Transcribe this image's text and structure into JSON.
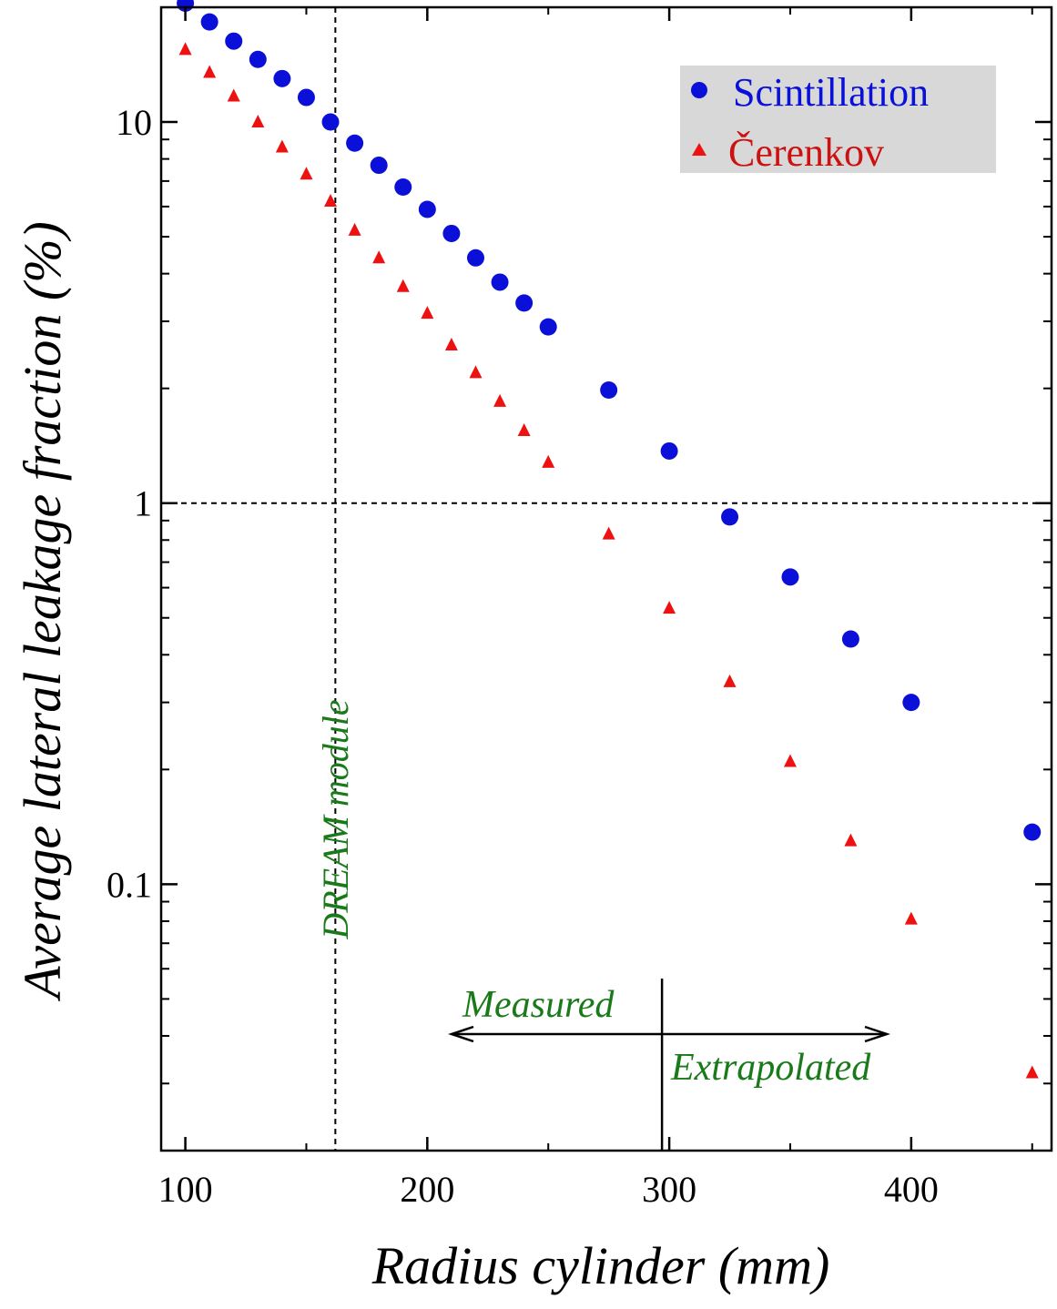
{
  "chart_data": {
    "type": "scatter",
    "title": "",
    "xlabel": "Radius cylinder (mm)",
    "ylabel": "Average lateral leakage fraction (%)",
    "xlim": [
      90,
      458
    ],
    "ylim": [
      0.02,
      20
    ],
    "yscale": "log",
    "xticks": [
      {
        "value": 100,
        "label": "100"
      },
      {
        "value": 200,
        "label": "200"
      },
      {
        "value": 300,
        "label": "300"
      },
      {
        "value": 400,
        "label": "400"
      }
    ],
    "yticks": [
      {
        "value": 0.1,
        "label": "0.1"
      },
      {
        "value": 1,
        "label": "1"
      },
      {
        "value": 10,
        "label": "10"
      }
    ],
    "grid": false,
    "legend_position": "top-right",
    "series": [
      {
        "name": "Scintillation",
        "marker": "circle",
        "color": "#0a10d8",
        "x": [
          100,
          110,
          120,
          130,
          140,
          150,
          160,
          170,
          180,
          190,
          200,
          210,
          220,
          230,
          240,
          250,
          275,
          300,
          325,
          350,
          375,
          400,
          450
        ],
        "y": [
          20.5,
          18.3,
          16.3,
          14.6,
          13.0,
          11.6,
          10.0,
          8.8,
          7.7,
          6.75,
          5.9,
          5.1,
          4.4,
          3.8,
          3.35,
          2.9,
          1.98,
          1.37,
          0.92,
          0.64,
          0.44,
          0.3,
          0.137
        ]
      },
      {
        "name": "Čerenkov",
        "marker": "triangle",
        "color": "#ee1111",
        "x": [
          100,
          110,
          120,
          130,
          140,
          150,
          160,
          170,
          180,
          190,
          200,
          210,
          220,
          230,
          240,
          250,
          275,
          300,
          325,
          350,
          375,
          400,
          450
        ],
        "y": [
          15.5,
          13.5,
          11.7,
          10.0,
          8.6,
          7.3,
          6.2,
          5.2,
          4.4,
          3.7,
          3.15,
          2.6,
          2.2,
          1.85,
          1.55,
          1.28,
          0.83,
          0.53,
          0.34,
          0.21,
          0.13,
          0.081,
          0.032
        ]
      }
    ],
    "reference_lines": [
      {
        "orientation": "vertical",
        "value": 162,
        "style": "dashed",
        "label": "DREAM module"
      },
      {
        "orientation": "horizontal",
        "value": 1,
        "style": "dashed"
      },
      {
        "orientation": "vertical",
        "value": 297,
        "style": "solid"
      }
    ],
    "annotations": {
      "measured": "Measured",
      "extrapolated": "Extrapolated"
    },
    "colors": {
      "annotation": "#1a7a1a",
      "legend_background": "#d8d8d8"
    }
  }
}
